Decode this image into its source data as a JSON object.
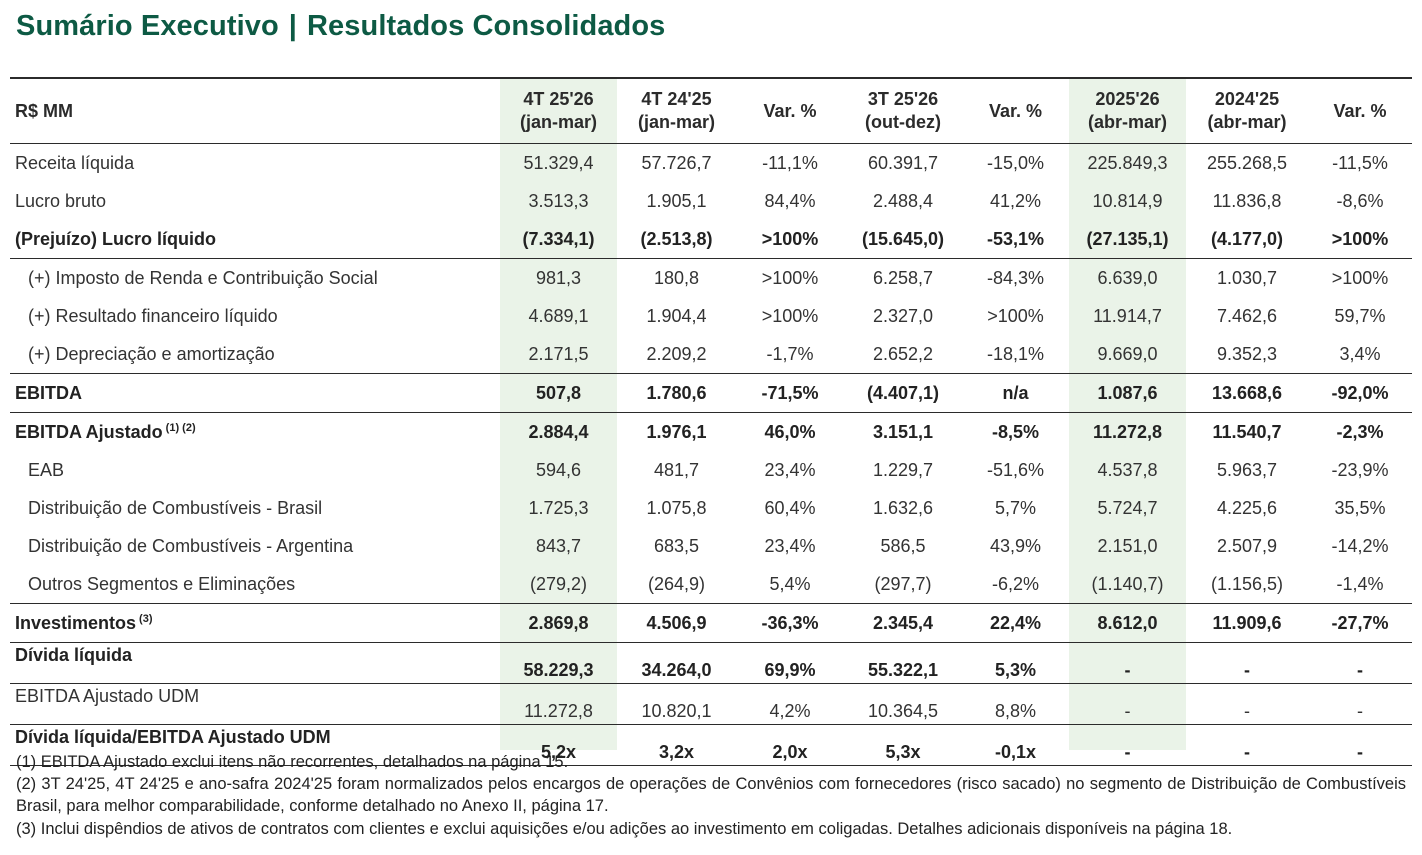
{
  "title": "Sumário Executivo",
  "title_sep": "|",
  "title2": "Resultados Consolidados",
  "header": {
    "unit": "R$ MM",
    "cols": [
      [
        "4T 25'26",
        "(jan-mar)"
      ],
      [
        "4T 24'25",
        "(jan-mar)"
      ],
      [
        "Var. %",
        ""
      ],
      [
        "3T 25'26",
        "(out-dez)"
      ],
      [
        "Var. %",
        ""
      ],
      [
        "2025'26",
        "(abr-mar)"
      ],
      [
        "2024'25",
        "(abr-mar)"
      ],
      [
        "Var. %",
        ""
      ]
    ]
  },
  "rows": [
    {
      "label": "Receita líquida",
      "values": [
        "51.329,4",
        "57.726,7",
        "-11,1%",
        "60.391,7",
        "-15,0%",
        "225.849,3",
        "255.268,5",
        "-11,5%"
      ]
    },
    {
      "label": "Lucro bruto",
      "values": [
        "3.513,3",
        "1.905,1",
        "84,4%",
        "2.488,4",
        "41,2%",
        "10.814,9",
        "11.836,8",
        "-8,6%"
      ]
    },
    {
      "label": "(Prejuízo) Lucro líquido",
      "values": [
        "(7.334,1)",
        "(2.513,8)",
        ">100%",
        "(15.645,0)",
        "-53,1%",
        "(27.135,1)",
        "(4.177,0)",
        ">100%"
      ]
    },
    {
      "label": "(+) Imposto de Renda e Contribuição Social",
      "values": [
        "981,3",
        "180,8",
        ">100%",
        "6.258,7",
        "-84,3%",
        "6.639,0",
        "1.030,7",
        ">100%"
      ]
    },
    {
      "label": "(+) Resultado financeiro líquido",
      "values": [
        "4.689,1",
        "1.904,4",
        ">100%",
        "2.327,0",
        ">100%",
        "11.914,7",
        "7.462,6",
        "59,7%"
      ]
    },
    {
      "label": "(+) Depreciação e amortização",
      "values": [
        "2.171,5",
        "2.209,2",
        "-1,7%",
        "2.652,2",
        "-18,1%",
        "9.669,0",
        "9.352,3",
        "3,4%"
      ]
    },
    {
      "label": "EBITDA",
      "values": [
        "507,8",
        "1.780,6",
        "-71,5%",
        "(4.407,1)",
        "n/a",
        "1.087,6",
        "13.668,6",
        "-92,0%"
      ]
    },
    {
      "label": "EBITDA Ajustado",
      "sup": "(1) (2)",
      "values": [
        "2.884,4",
        "1.976,1",
        "46,0%",
        "3.151,1",
        "-8,5%",
        "11.272,8",
        "11.540,7",
        "-2,3%"
      ]
    },
    {
      "label": "EAB",
      "values": [
        "594,6",
        "481,7",
        "23,4%",
        "1.229,7",
        "-51,6%",
        "4.537,8",
        "5.963,7",
        "-23,9%"
      ]
    },
    {
      "label": "Distribuição de Combustíveis - Brasil",
      "values": [
        "1.725,3",
        "1.075,8",
        "60,4%",
        "1.632,6",
        "5,7%",
        "5.724,7",
        "4.225,6",
        "35,5%"
      ]
    },
    {
      "label": "Distribuição de Combustíveis - Argentina",
      "values": [
        "843,7",
        "683,5",
        "23,4%",
        "586,5",
        "43,9%",
        "2.151,0",
        "2.507,9",
        "-14,2%"
      ]
    },
    {
      "label": "Outros Segmentos e Eliminações",
      "values": [
        "(279,2)",
        "(264,9)",
        "5,4%",
        "(297,7)",
        "-6,2%",
        "(1.140,7)",
        "(1.156,5)",
        "-1,4%"
      ]
    },
    {
      "label": "Investimentos",
      "sup": "(3)",
      "values": [
        "2.869,8",
        "4.506,9",
        "-36,3%",
        "2.345,4",
        "22,4%",
        "8.612,0",
        "11.909,6",
        "-27,7%"
      ]
    },
    {
      "label": "Dívida líquida",
      "values": [
        "58.229,3",
        "34.264,0",
        "69,9%",
        "55.322,1",
        "5,3%",
        "-",
        "-",
        "-"
      ]
    },
    {
      "label": "EBITDA Ajustado UDM",
      "values": [
        "11.272,8",
        "10.820,1",
        "4,2%",
        "10.364,5",
        "8,8%",
        "-",
        "-",
        "-"
      ]
    },
    {
      "label": "Dívida líquida/EBITDA Ajustado UDM",
      "values": [
        "5,2x",
        "3,2x",
        "2,0x",
        "5,3x",
        "-0,1x",
        "-",
        "-",
        "-"
      ]
    }
  ],
  "footnotes": [
    "(1) EBITDA Ajustado exclui itens não recorrentes, detalhados na página 15.",
    "(2) 3T 24'25, 4T 24'25 e ano-safra 2024'25 foram normalizados pelos encargos de operações de Convênios com fornecedores (risco sacado) no segmento de Distribuição de Combustíveis Brasil, para melhor comparabilidade, conforme detalhado no Anexo II, página 17.",
    "(3) Inclui dispêndios de ativos de contratos com clientes e exclui aquisições e/ou adições ao investimento em coligadas. Detalhes adicionais disponíveis na página 18."
  ],
  "colors": {
    "title": "#0d5a44",
    "highlight": "#eaf3e8",
    "rule": "#2b2b2b"
  }
}
